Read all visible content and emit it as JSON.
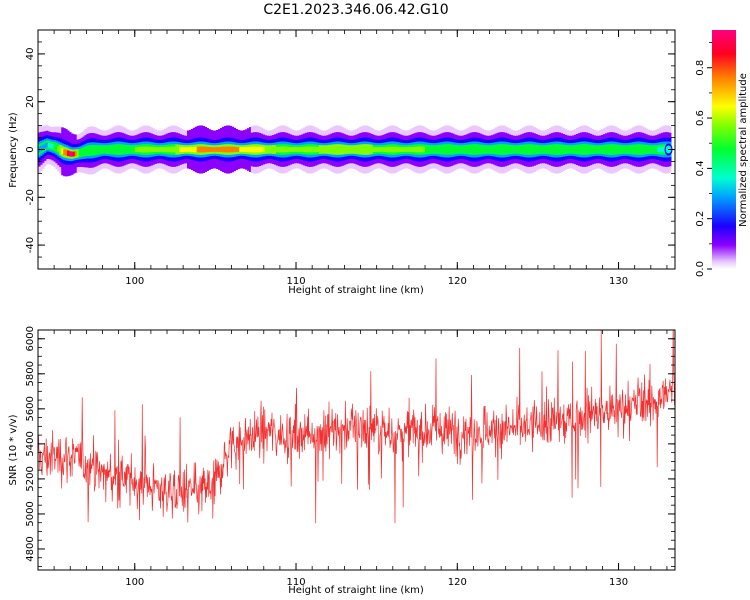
{
  "figure_title": "C2E1.2023.346.06.42.G10",
  "colors": {
    "snr_line": "#f23030",
    "axis": "#000000"
  },
  "chart_data": [
    {
      "type": "heatmap",
      "title": "C2E1.2023.346.06.42.G10",
      "xlabel": "Height of straight line (km)",
      "ylabel": "Frequency (Hz)",
      "xlim": [
        94,
        133.5
      ],
      "ylim": [
        -50,
        50
      ],
      "xticks": [
        100,
        110,
        120,
        130
      ],
      "yticks": [
        40,
        20,
        0,
        -20,
        -40
      ],
      "colorbar": {
        "label": "Normalized spectral amplitude",
        "range": [
          0,
          0.95
        ],
        "ticks": [
          0.0,
          0.2,
          0.4,
          0.6,
          0.8
        ],
        "colormap": "gist_rainbow"
      },
      "ridge": {
        "description_free": true,
        "frequency_center_hz": 0,
        "x": [
          94,
          94.5,
          95,
          95.5,
          96,
          96.5,
          97,
          98,
          100,
          102,
          104,
          105,
          106,
          108,
          110,
          112,
          114,
          116,
          118,
          120,
          122,
          124,
          126,
          128,
          130,
          132,
          133
        ],
        "freq": [
          0,
          2,
          1,
          -1,
          -2,
          -1.5,
          -0.5,
          0,
          0,
          0,
          0,
          0,
          0,
          0,
          0,
          0,
          0,
          0,
          0,
          0,
          0,
          0,
          0,
          0,
          0,
          0,
          0
        ],
        "amplitude": [
          0.25,
          0.3,
          0.4,
          0.7,
          0.95,
          0.5,
          0.4,
          0.45,
          0.5,
          0.55,
          0.7,
          0.75,
          0.7,
          0.6,
          0.55,
          0.6,
          0.6,
          0.55,
          0.5,
          0.45,
          0.45,
          0.4,
          0.42,
          0.4,
          0.4,
          0.4,
          0.35
        ]
      }
    },
    {
      "type": "line",
      "xlabel": "Height of straight line (km)",
      "ylabel": "SNR (10 * v/v)",
      "xlim": [
        94,
        133.5
      ],
      "ylim": [
        4680,
        6050
      ],
      "xticks": [
        100,
        110,
        120,
        130
      ],
      "yticks": [
        4800,
        5000,
        5200,
        5400,
        5600,
        5800,
        6000
      ],
      "trend": {
        "x": [
          94,
          96,
          98,
          100,
          102,
          104,
          105,
          105.5,
          106,
          108,
          110,
          112,
          114,
          116,
          118,
          120,
          122,
          124,
          126,
          128,
          130,
          132,
          133.5
        ],
        "snr": [
          5320,
          5330,
          5230,
          5180,
          5130,
          5120,
          5180,
          5300,
          5400,
          5470,
          5450,
          5480,
          5500,
          5460,
          5480,
          5470,
          5480,
          5490,
          5520,
          5560,
          5590,
          5640,
          5700
        ]
      },
      "noise_amplitude": 130,
      "samples": 1400
    }
  ]
}
